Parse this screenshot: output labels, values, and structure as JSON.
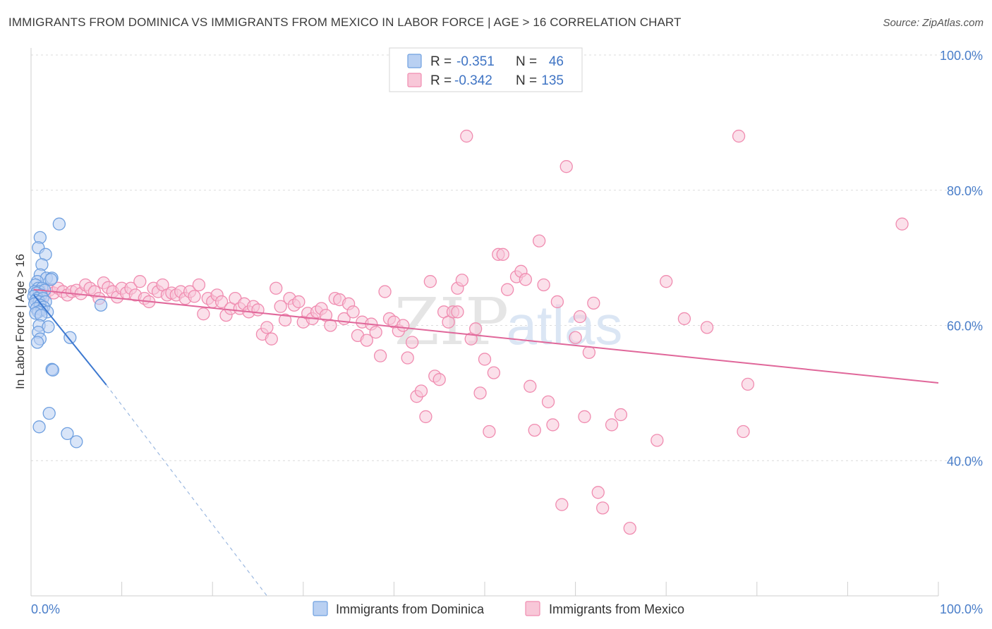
{
  "title": "IMMIGRANTS FROM DOMINICA VS IMMIGRANTS FROM MEXICO IN LABOR FORCE | AGE > 16 CORRELATION CHART",
  "source": "Source: ZipAtlas.com",
  "chart_data": {
    "type": "scatter",
    "title": "IMMIGRANTS FROM DOMINICA VS IMMIGRANTS FROM MEXICO IN LABOR FORCE | AGE > 16 CORRELATION CHART",
    "xlabel": "",
    "ylabel": "In Labor Force | Age > 16",
    "xlim": [
      0,
      100
    ],
    "ylim": [
      20,
      100
    ],
    "x_tick_labels": [
      {
        "value": 0,
        "label": "0.0%"
      },
      {
        "value": 100,
        "label": "100.0%"
      }
    ],
    "y_tick_labels": [
      {
        "value": 100,
        "label": "100.0%"
      },
      {
        "value": 80,
        "label": "80.0%"
      },
      {
        "value": 60,
        "label": "60.0%"
      },
      {
        "value": 40,
        "label": "40.0%"
      }
    ],
    "watermark": {
      "zip": "ZIP",
      "atlas": "atlas"
    },
    "legend": [
      {
        "r_label": "R =",
        "r": "-0.351",
        "n_label": "N =",
        "n": "46"
      },
      {
        "r_label": "R =",
        "r": "-0.342",
        "n_label": "N =",
        "n": "135"
      }
    ],
    "series": [
      {
        "name": "Immigrants from Dominica",
        "color": "#6fa0e0",
        "fill": "#b9d0f2",
        "trend": {
          "x0": 0.3,
          "y0": 64.5,
          "x1": 8.3,
          "y1": 51.2,
          "dash_to_x": 26.0,
          "dash_to_y": 20.0,
          "line_color": "#3c78d0"
        },
        "points": [
          [
            1.0,
            73.0
          ],
          [
            3.1,
            75.0
          ],
          [
            0.8,
            71.5
          ],
          [
            1.6,
            70.5
          ],
          [
            1.2,
            69.0
          ],
          [
            1.0,
            67.5
          ],
          [
            1.7,
            67.0
          ],
          [
            2.3,
            67.0
          ],
          [
            0.7,
            66.5
          ],
          [
            0.5,
            66.0
          ],
          [
            0.8,
            65.5
          ],
          [
            1.2,
            65.5
          ],
          [
            0.4,
            65.0
          ],
          [
            0.9,
            65.0
          ],
          [
            1.5,
            65.2
          ],
          [
            0.6,
            64.8
          ],
          [
            1.1,
            64.5
          ],
          [
            0.3,
            64.3
          ],
          [
            0.7,
            64.0
          ],
          [
            1.3,
            64.0
          ],
          [
            0.5,
            63.7
          ],
          [
            0.9,
            63.5
          ],
          [
            1.6,
            63.5
          ],
          [
            0.4,
            63.2
          ],
          [
            1.0,
            63.0
          ],
          [
            1.4,
            62.7
          ],
          [
            0.6,
            62.5
          ],
          [
            1.2,
            62.3
          ],
          [
            0.8,
            62.0
          ],
          [
            1.8,
            62.0
          ],
          [
            0.5,
            61.8
          ],
          [
            1.1,
            61.5
          ],
          [
            0.9,
            60.0
          ],
          [
            1.9,
            59.8
          ],
          [
            0.8,
            59.0
          ],
          [
            1.0,
            58.0
          ],
          [
            0.7,
            57.5
          ],
          [
            4.3,
            58.2
          ],
          [
            7.7,
            63.0
          ],
          [
            2.3,
            53.5
          ],
          [
            2.4,
            53.4
          ],
          [
            2.0,
            47.0
          ],
          [
            0.9,
            45.0
          ],
          [
            4.0,
            44.0
          ],
          [
            5.0,
            42.8
          ],
          [
            2.2,
            66.8
          ]
        ]
      },
      {
        "name": "Immigrants from Mexico",
        "color": "#f08cb0",
        "fill": "#f8c7d8",
        "trend": {
          "x0": 0.3,
          "y0": 65.3,
          "x1": 100.0,
          "y1": 51.5,
          "line_color": "#e0679a"
        },
        "points": [
          [
            1.0,
            65.0
          ],
          [
            1.5,
            64.5
          ],
          [
            2.0,
            65.2
          ],
          [
            2.5,
            64.8
          ],
          [
            3.0,
            65.5
          ],
          [
            3.5,
            65.0
          ],
          [
            4.0,
            64.5
          ],
          [
            4.5,
            65.0
          ],
          [
            5.0,
            65.2
          ],
          [
            5.5,
            64.7
          ],
          [
            6.0,
            66.0
          ],
          [
            6.5,
            65.5
          ],
          [
            7.0,
            65.0
          ],
          [
            7.5,
            64.0
          ],
          [
            8.0,
            66.3
          ],
          [
            8.5,
            65.6
          ],
          [
            9.0,
            65.0
          ],
          [
            9.5,
            64.2
          ],
          [
            10.0,
            65.5
          ],
          [
            10.5,
            64.8
          ],
          [
            11.0,
            65.5
          ],
          [
            11.5,
            64.5
          ],
          [
            12.0,
            66.5
          ],
          [
            12.5,
            64.0
          ],
          [
            13.0,
            63.5
          ],
          [
            13.5,
            65.5
          ],
          [
            14.0,
            65.0
          ],
          [
            14.5,
            66.0
          ],
          [
            15.0,
            64.5
          ],
          [
            15.5,
            64.8
          ],
          [
            16.0,
            64.5
          ],
          [
            16.5,
            65.0
          ],
          [
            17.0,
            64.0
          ],
          [
            17.5,
            65.0
          ],
          [
            18.0,
            64.3
          ],
          [
            18.5,
            66.0
          ],
          [
            19.0,
            61.7
          ],
          [
            19.5,
            64.0
          ],
          [
            20.0,
            63.5
          ],
          [
            20.5,
            64.5
          ],
          [
            21.0,
            63.5
          ],
          [
            21.5,
            61.5
          ],
          [
            22.0,
            62.5
          ],
          [
            22.5,
            64.0
          ],
          [
            23.0,
            62.5
          ],
          [
            23.5,
            63.2
          ],
          [
            24.0,
            62.0
          ],
          [
            24.5,
            62.8
          ],
          [
            25.0,
            62.3
          ],
          [
            25.5,
            58.7
          ],
          [
            26.0,
            59.7
          ],
          [
            26.5,
            58.0
          ],
          [
            27.0,
            65.5
          ],
          [
            27.5,
            62.8
          ],
          [
            28.0,
            60.8
          ],
          [
            28.5,
            64.0
          ],
          [
            29.0,
            63.0
          ],
          [
            29.5,
            63.5
          ],
          [
            30.0,
            60.5
          ],
          [
            30.5,
            61.8
          ],
          [
            31.0,
            61.0
          ],
          [
            31.5,
            62.0
          ],
          [
            32.0,
            62.5
          ],
          [
            32.5,
            61.5
          ],
          [
            33.0,
            60.0
          ],
          [
            33.5,
            64.0
          ],
          [
            34.0,
            63.8
          ],
          [
            34.5,
            61.0
          ],
          [
            35.0,
            63.2
          ],
          [
            35.5,
            62.0
          ],
          [
            36.0,
            58.5
          ],
          [
            36.5,
            60.5
          ],
          [
            37.0,
            57.8
          ],
          [
            37.5,
            60.2
          ],
          [
            38.0,
            59.0
          ],
          [
            38.5,
            55.5
          ],
          [
            39.0,
            65.0
          ],
          [
            39.5,
            61.0
          ],
          [
            40.0,
            60.5
          ],
          [
            40.5,
            59.2
          ],
          [
            41.0,
            60.0
          ],
          [
            41.5,
            55.2
          ],
          [
            42.0,
            57.5
          ],
          [
            42.5,
            49.5
          ],
          [
            43.0,
            50.3
          ],
          [
            43.5,
            46.5
          ],
          [
            44.0,
            66.5
          ],
          [
            44.5,
            52.5
          ],
          [
            45.0,
            52.0
          ],
          [
            45.5,
            62.0
          ],
          [
            46.0,
            60.5
          ],
          [
            46.5,
            62.0
          ],
          [
            47.0,
            65.5
          ],
          [
            47.5,
            66.7
          ],
          [
            48.0,
            88.0
          ],
          [
            48.5,
            58.0
          ],
          [
            49.0,
            59.5
          ],
          [
            49.5,
            50.0
          ],
          [
            50.0,
            55.0
          ],
          [
            50.5,
            44.3
          ],
          [
            51.0,
            53.0
          ],
          [
            51.5,
            70.5
          ],
          [
            52.0,
            70.5
          ],
          [
            52.5,
            65.3
          ],
          [
            53.5,
            67.2
          ],
          [
            54.0,
            68.0
          ],
          [
            54.5,
            66.8
          ],
          [
            55.0,
            51.0
          ],
          [
            55.5,
            44.5
          ],
          [
            56.0,
            72.5
          ],
          [
            56.5,
            66.0
          ],
          [
            57.0,
            48.7
          ],
          [
            57.5,
            45.3
          ],
          [
            58.0,
            63.5
          ],
          [
            58.5,
            33.5
          ],
          [
            59.0,
            83.5
          ],
          [
            60.0,
            58.2
          ],
          [
            60.5,
            61.3
          ],
          [
            61.0,
            46.5
          ],
          [
            61.5,
            56.0
          ],
          [
            62.0,
            63.3
          ],
          [
            62.5,
            35.3
          ],
          [
            63.0,
            33.0
          ],
          [
            64.0,
            45.3
          ],
          [
            65.0,
            46.8
          ],
          [
            66.0,
            30.0
          ],
          [
            69.0,
            43.0
          ],
          [
            70.0,
            66.5
          ],
          [
            72.0,
            61.0
          ],
          [
            74.5,
            59.7
          ],
          [
            78.0,
            88.0
          ],
          [
            78.5,
            44.3
          ],
          [
            79.0,
            51.3
          ],
          [
            96.0,
            75.0
          ],
          [
            47.0,
            62.0
          ]
        ]
      }
    ],
    "bottom_legend": [
      "Immigrants from Dominica",
      "Immigrants from Mexico"
    ]
  }
}
